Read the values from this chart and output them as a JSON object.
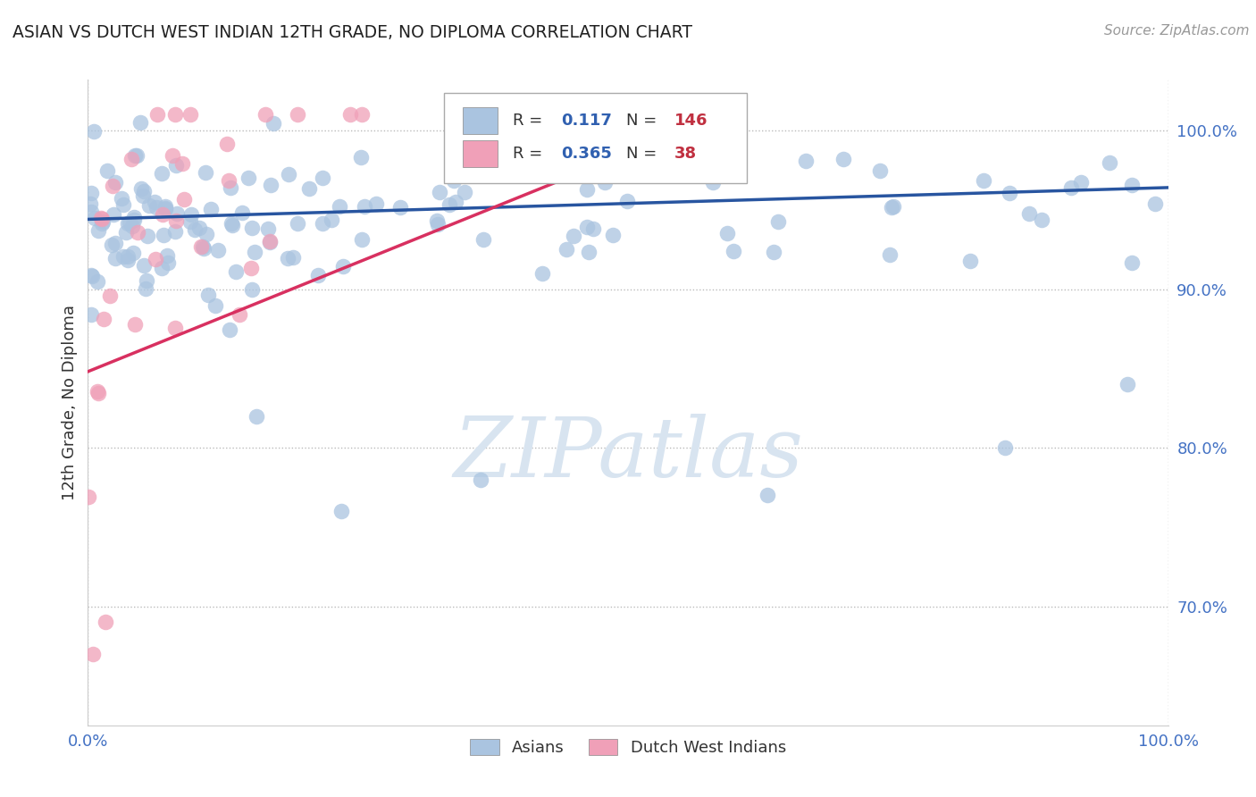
{
  "title": "ASIAN VS DUTCH WEST INDIAN 12TH GRADE, NO DIPLOMA CORRELATION CHART",
  "source": "Source: ZipAtlas.com",
  "ylabel": "12th Grade, No Diploma",
  "legend_label_blue": "Asians",
  "legend_label_pink": "Dutch West Indians",
  "R_blue": 0.117,
  "N_blue": 146,
  "R_pink": 0.365,
  "N_pink": 38,
  "blue_dot_color": "#aac4e0",
  "pink_dot_color": "#f0a0b8",
  "blue_line_color": "#2855a0",
  "pink_line_color": "#d83060",
  "watermark_color": "#d8e4f0",
  "ytick_values": [
    0.7,
    0.8,
    0.9,
    1.0
  ],
  "xmin": 0.0,
  "xmax": 1.0,
  "ymin": 0.625,
  "ymax": 1.032,
  "blue_line_x": [
    0.0,
    1.0
  ],
  "blue_line_y": [
    0.944,
    0.964
  ],
  "pink_line_x": [
    0.0,
    0.57
  ],
  "pink_line_y": [
    0.848,
    1.005
  ]
}
